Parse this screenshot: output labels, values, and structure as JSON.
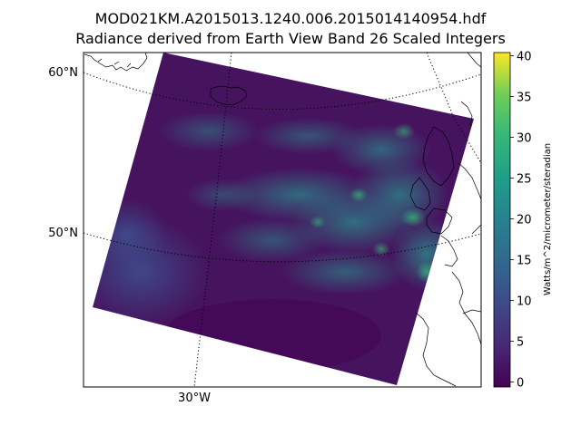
{
  "figure": {
    "title_line1": "MOD021KM.A2015013.1240.006.2015014140954.hdf",
    "title_line2": "Radiance derived from Earth View Band 26 Scaled Integers"
  },
  "map": {
    "projection": "polar stereographic-like (curved parallels)",
    "graticule_style": "dotted",
    "lat_labels": [
      "60°N",
      "50°N"
    ],
    "lon_labels": [
      "30°W"
    ],
    "coastlines": [
      "Greenland tip",
      "Iceland",
      "Norway/Scandinavia",
      "British Isles",
      "France"
    ]
  },
  "colorbar": {
    "colormap": "viridis",
    "min": 0,
    "max": 40,
    "ticks": [
      "0",
      "5",
      "10",
      "15",
      "20",
      "25",
      "30",
      "35",
      "40"
    ],
    "label": "Watts/m^2/micrometer/steradian"
  },
  "chart_data": {
    "type": "heatmap",
    "title": "MOD021KM.A2015013.1240.006.2015014140954.hdf\nRadiance derived from Earth View Band 26 Scaled Integers",
    "colorbar_range": [
      0,
      40
    ],
    "colorbar_label": "Watts/m^2/micrometer/steradian",
    "dominant_value_range": [
      0,
      10
    ],
    "peak_values_approx": 22,
    "description_of_field": "swath tilted rectangle over North Atlantic; mostly low radiance (dark purple) with brighter cloud structures (teal/green) concentrated over central and eastern parts near British Isles; lighter blue band on western edge"
  },
  "colors": {
    "viridis_dark": "#440154",
    "viridis_purple": "#472d7b",
    "viridis_blue": "#3b528b",
    "viridis_teal": "#21918c",
    "viridis_green": "#5ec962",
    "viridis_yellow": "#fde725"
  }
}
